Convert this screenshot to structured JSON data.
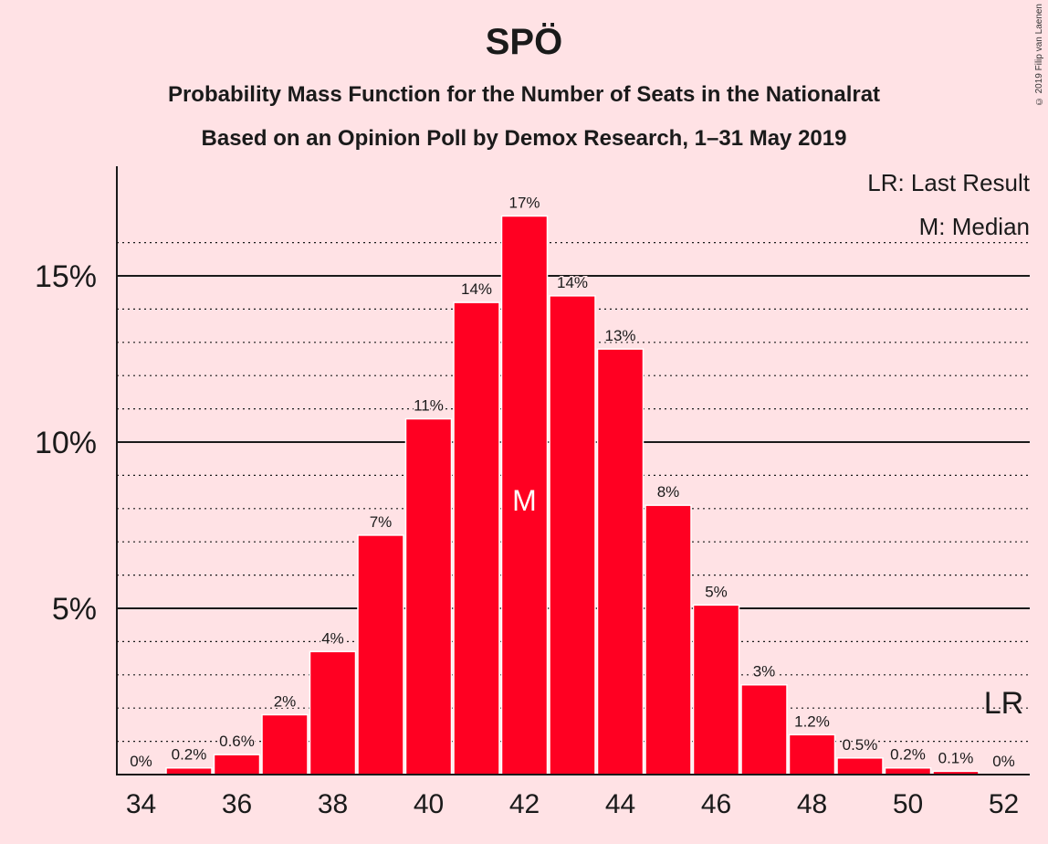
{
  "title": "SPÖ",
  "subtitle_1": "Probability Mass Function for the Number of Seats in the Nationalrat",
  "subtitle_2": "Based on an Opinion Poll by Demox Research, 1–31 May 2019",
  "copyright": "© 2019 Filip van Laenen",
  "legend": {
    "last_result": "LR: Last Result",
    "median": "M: Median"
  },
  "colors": {
    "bar": "#ff0022",
    "background": "#ffe2e5",
    "text": "#1a1a1a"
  },
  "chart_data": {
    "type": "bar",
    "categories": [
      34,
      35,
      36,
      37,
      38,
      39,
      40,
      41,
      42,
      43,
      44,
      45,
      46,
      47,
      48,
      49,
      50,
      51,
      52
    ],
    "values": [
      0.0,
      0.2,
      0.6,
      1.8,
      3.7,
      7.2,
      10.7,
      14.2,
      16.8,
      14.4,
      12.8,
      8.1,
      5.1,
      2.7,
      1.2,
      0.5,
      0.2,
      0.1,
      0.0
    ],
    "labels": [
      "0%",
      "0.2%",
      "0.6%",
      "2%",
      "4%",
      "7%",
      "11%",
      "14%",
      "17%",
      "14%",
      "13%",
      "8%",
      "5%",
      "3%",
      "1.2%",
      "0.5%",
      "0.2%",
      "0.1%",
      "0%"
    ],
    "x_tick_labels": [
      "34",
      "36",
      "38",
      "40",
      "42",
      "44",
      "46",
      "48",
      "50",
      "52"
    ],
    "y_ticks": [
      5,
      10,
      15
    ],
    "y_tick_labels": [
      "5%",
      "10%",
      "15%"
    ],
    "ylim": [
      0,
      18
    ],
    "median_seat": 42,
    "median_marker": "M",
    "last_result_seat": 52,
    "last_result_marker": "LR",
    "grid": true
  }
}
